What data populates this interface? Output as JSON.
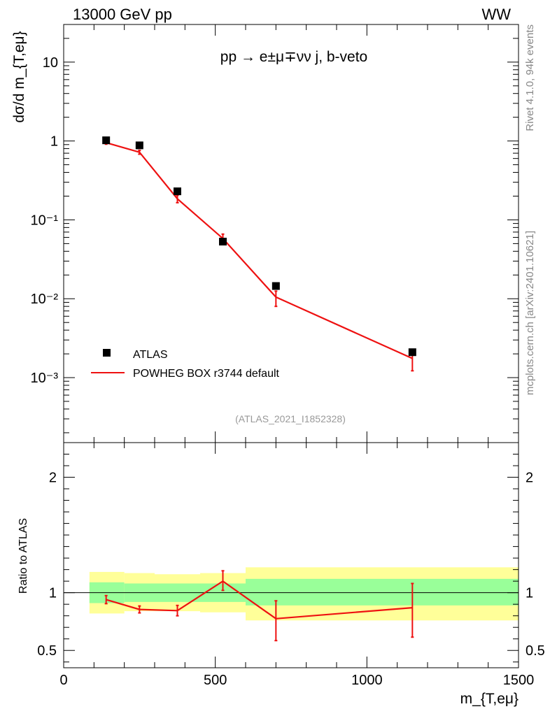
{
  "header": {
    "left": "13000 GeV pp",
    "right": "WW"
  },
  "chart_data": [
    {
      "type": "scatter",
      "panel": "main",
      "title": "pp → e±μ∓νν j, b-veto",
      "ylabel": "dσ/d m_{T,eμ}",
      "yscale": "log",
      "xlim": [
        0,
        1500
      ],
      "ylim": [
        0.00015,
        30
      ],
      "y_ticks": [
        {
          "v": 10,
          "label": "10"
        },
        {
          "v": 1,
          "label": "1"
        },
        {
          "v": 0.1,
          "label": "10⁻¹"
        },
        {
          "v": 0.01,
          "label": "10⁻²"
        },
        {
          "v": 0.001,
          "label": "10⁻³"
        }
      ],
      "series": [
        {
          "name": "ATLAS",
          "style": "markers",
          "color": "#000000",
          "x": [
            140,
            250,
            375,
            525,
            700,
            1150
          ],
          "y": [
            1.02,
            0.88,
            0.23,
            0.053,
            0.0145,
            0.0021
          ]
        },
        {
          "name": "POWHEG BOX r3744 default",
          "style": "line",
          "color": "#ee1111",
          "x": [
            140,
            250,
            375,
            525,
            700,
            1150
          ],
          "y": [
            0.95,
            0.72,
            0.185,
            0.058,
            0.0105,
            0.00175
          ],
          "err_lo": [
            0.91,
            0.68,
            0.165,
            0.051,
            0.008,
            0.00122
          ],
          "err_hi": [
            0.99,
            0.76,
            0.205,
            0.066,
            0.0125,
            0.00205
          ]
        }
      ],
      "annotation": "(ATLAS_2021_I1852328)"
    },
    {
      "type": "line",
      "panel": "ratio",
      "ylabel": "Ratio to ATLAS",
      "xlabel": "m_{T,eμ}",
      "xlim": [
        0,
        1500
      ],
      "ylim": [
        0.35,
        2.3
      ],
      "x_ticks": [
        {
          "v": 0,
          "label": "0"
        },
        {
          "v": 500,
          "label": "500"
        },
        {
          "v": 1000,
          "label": "1000"
        },
        {
          "v": 1500,
          "label": "1500"
        }
      ],
      "y_ticks": [
        {
          "v": 0.5,
          "label": "0.5"
        },
        {
          "v": 1,
          "label": "1"
        },
        {
          "v": 2,
          "label": "2"
        }
      ],
      "bands": {
        "edges": [
          85,
          200,
          300,
          450,
          600,
          1500
        ],
        "inner_lo": [
          0.91,
          0.92,
          0.92,
          0.92,
          0.89
        ],
        "inner_hi": [
          1.09,
          1.08,
          1.08,
          1.08,
          1.12
        ],
        "outer_lo": [
          0.82,
          0.84,
          0.84,
          0.83,
          0.76
        ],
        "outer_hi": [
          1.18,
          1.17,
          1.16,
          1.17,
          1.22
        ],
        "inner_color": "#99ff99",
        "outer_color": "#ffff99"
      },
      "series": [
        {
          "name": "POWHEG BOX r3744 default",
          "color": "#ee1111",
          "x": [
            140,
            250,
            375,
            525,
            700,
            1150
          ],
          "y": [
            0.94,
            0.855,
            0.845,
            1.1,
            0.775,
            0.87
          ],
          "err_lo": [
            0.905,
            0.825,
            0.8,
            1.02,
            0.585,
            0.615
          ],
          "err_hi": [
            0.975,
            0.885,
            0.89,
            1.19,
            0.93,
            1.08
          ]
        }
      ]
    }
  ],
  "side_labels": {
    "rivet": "Rivet 4.1.0,  94k events",
    "mcplots": "mcplots.cern.ch [arXiv:2401.10621]"
  }
}
